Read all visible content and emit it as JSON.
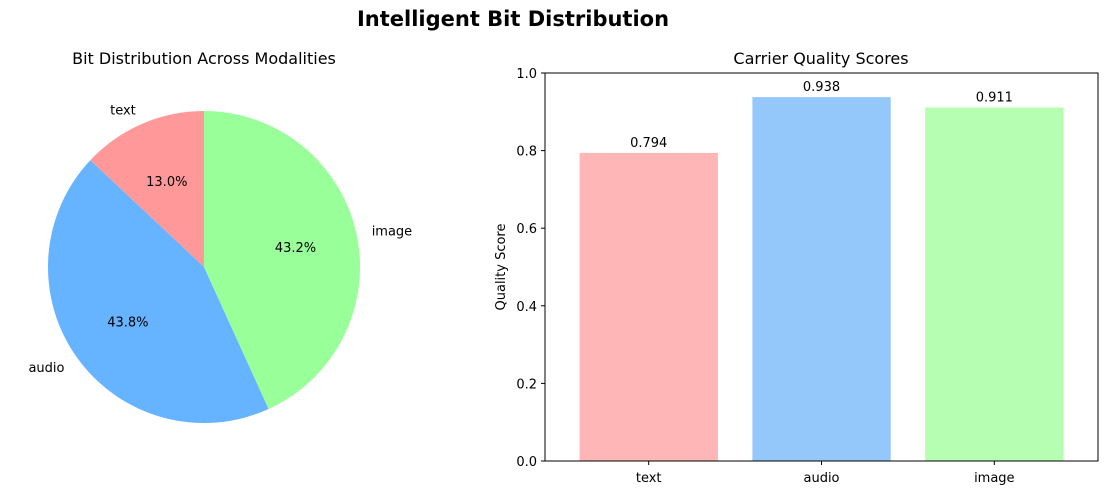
{
  "figure": {
    "title": "Intelligent Bit Distribution"
  },
  "colors": {
    "pie": [
      "#ff9999",
      "#66b3ff",
      "#99ff99"
    ],
    "bars": [
      "#ffb6b6",
      "#94c8fb",
      "#b6ffb2"
    ],
    "axis": "#000000",
    "background": "#ffffff"
  },
  "chart_data": [
    {
      "type": "pie",
      "title": "Bit Distribution Across Modalities",
      "categories": [
        "text",
        "audio",
        "image"
      ],
      "values": [
        13.0,
        43.8,
        43.2
      ],
      "value_labels": [
        "13.0%",
        "43.8%",
        "43.2%"
      ],
      "start_angle_deg": 90,
      "direction": "counterclockwise"
    },
    {
      "type": "bar",
      "title": "Carrier Quality Scores",
      "categories": [
        "text",
        "audio",
        "image"
      ],
      "values": [
        0.794,
        0.938,
        0.911
      ],
      "value_labels": [
        "0.794",
        "0.938",
        "0.911"
      ],
      "xlabel": "",
      "ylabel": "Quality Score",
      "ylim": [
        0,
        1.0
      ],
      "yticks": [
        "0.0",
        "0.2",
        "0.4",
        "0.6",
        "0.8",
        "1.0"
      ],
      "grid": false
    }
  ]
}
